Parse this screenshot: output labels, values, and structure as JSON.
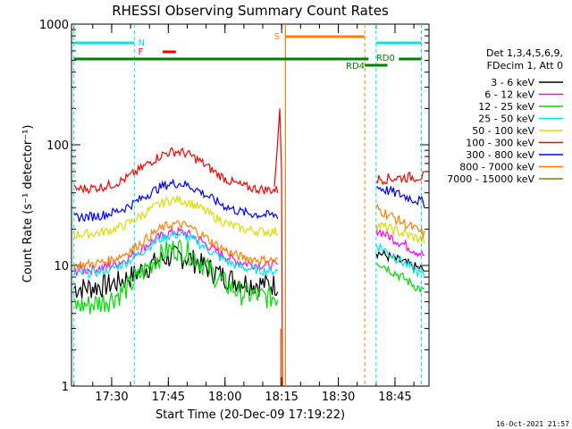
{
  "chart_data": {
    "type": "line",
    "title": "RHESSI Observing Summary Count Rates",
    "xlabel": "Start Time (20-Dec-09 17:19:22)",
    "ylabel": "Count Rate (s⁻¹ detector⁻¹)",
    "y_scale": "log",
    "ylim": [
      1,
      1000
    ],
    "xlim_minutes": [
      17.32,
      17.87
    ],
    "x_ticks": [
      {
        "label": "17:30",
        "value": 17.5
      },
      {
        "label": "17:45",
        "value": 17.75
      },
      {
        "label": "18:00",
        "value": 18.0
      },
      {
        "label": "18:15",
        "value": 18.25
      },
      {
        "label": "18:30",
        "value": 18.5
      },
      {
        "label": "18:45",
        "value": 18.75
      }
    ],
    "y_ticks": [
      {
        "label": "1",
        "value": 1
      },
      {
        "label": "10",
        "value": 10
      },
      {
        "label": "100",
        "value": 100
      },
      {
        "label": "1000",
        "value": 1000
      }
    ],
    "legend_title_1": "Det 1,3,4,5,6,9,",
    "legend_title_2": "FDecim 1, Att 0",
    "legend_position": "right",
    "timestamp": "16-Oct-2021 21:57",
    "series": [
      {
        "name": "3 - 6 keV",
        "color": "#000000",
        "pre": [
          6.5,
          12,
          7
        ],
        "post": [
          13,
          9
        ]
      },
      {
        "name": "6 - 12 keV",
        "color": "#ff00ff",
        "pre": [
          9,
          19,
          10
        ],
        "post": [
          20,
          12
        ]
      },
      {
        "name": "12 - 25 keV",
        "color": "#00dd00",
        "pre": [
          4.6,
          14,
          5.5
        ],
        "post": [
          11,
          6
        ]
      },
      {
        "name": "25 - 50 keV",
        "color": "#00e5e5",
        "pre": [
          8.5,
          18,
          9
        ],
        "post": [
          15,
          8
        ]
      },
      {
        "name": "50 - 100 keV",
        "color": "#dddd00",
        "pre": [
          18,
          35,
          19
        ],
        "post": [
          22,
          16
        ]
      },
      {
        "name": "100 - 300 keV",
        "color": "#ff0000",
        "pre": [
          43,
          88,
          42
        ],
        "post": [
          52,
          55
        ]
      },
      {
        "name": "300 - 800 keV",
        "color": "#0000ff",
        "pre": [
          25,
          48,
          26
        ],
        "post": [
          45,
          33
        ]
      },
      {
        "name": "800 - 7000 keV",
        "color": "#ff8000",
        "pre": [
          10,
          22,
          11
        ],
        "post": [
          30,
          18
        ]
      },
      {
        "name": "7000 - 15000 keV",
        "color": "#808000",
        "pre": [],
        "post": []
      }
    ],
    "flags": [
      {
        "label": "N",
        "color": "#00e5e5"
      },
      {
        "label": "F",
        "color": "#ff0000"
      },
      {
        "label": "S",
        "color": "#ff8000"
      },
      {
        "label": "RD0",
        "color": "#008000"
      },
      {
        "label": "RD4",
        "color": "#008000"
      }
    ]
  }
}
